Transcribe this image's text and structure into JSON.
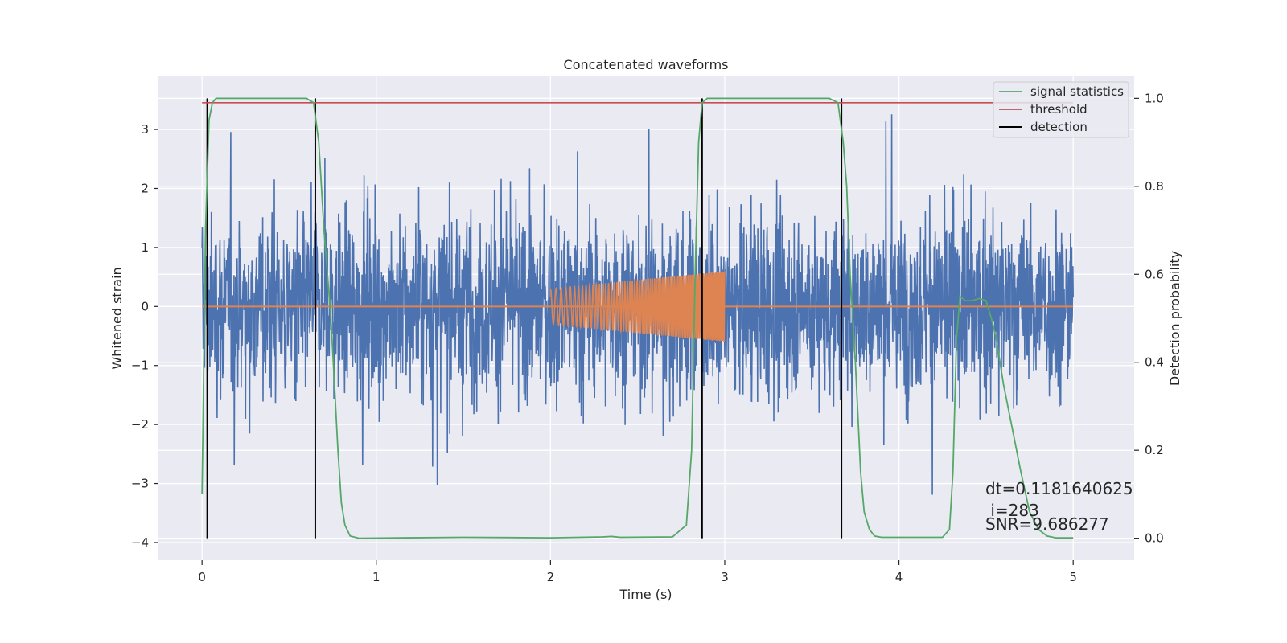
{
  "chart_data": {
    "type": "line",
    "title": "Concatenated waveforms",
    "xlabel": "Time (s)",
    "ylabel": "Whitened strain",
    "ylabel_right": "Detection probability",
    "xlim": [
      -0.25,
      5.35
    ],
    "ylim": [
      -4.3,
      3.9
    ],
    "ylim_right": [
      -0.05,
      1.05
    ],
    "xticks": [
      0,
      1,
      2,
      3,
      4,
      5
    ],
    "xtick_labels": [
      "0",
      "1",
      "2",
      "3",
      "4",
      "5"
    ],
    "yticks": [
      -4,
      -3,
      -2,
      -1,
      0,
      1,
      2,
      3
    ],
    "ytick_labels": [
      "−4",
      "−3",
      "−2",
      "−1",
      "0",
      "1",
      "2",
      "3"
    ],
    "yticks_right": [
      0.0,
      0.2,
      0.4,
      0.6,
      0.8,
      1.0
    ],
    "ytick_labels_right": [
      "0.0",
      "0.2",
      "0.4",
      "0.6",
      "0.8",
      "1.0"
    ],
    "grid": true,
    "legend_position": "top-right",
    "legend": [
      "signal statistics",
      "threshold",
      "detection"
    ],
    "colors": {
      "noise": "#4c72b0",
      "waveform": "#dd8452",
      "signal_statistics": "#55a868",
      "threshold": "#c44e52",
      "detection": "#000000",
      "plot_bg": "#eaeaf2",
      "grid": "#ffffff"
    },
    "noise": {
      "t_start": 0.0,
      "t_end": 5.0,
      "amplitude_typical": 1.5,
      "amplitude_peak": 3.5
    },
    "waveform": {
      "t_start": 2.0,
      "t_end": 3.0,
      "amp_start": 0.3,
      "amp_end": 0.6
    },
    "series": [
      {
        "name": "signal statistics",
        "x": [
          0.0,
          0.02,
          0.04,
          0.06,
          0.08,
          0.1,
          0.6,
          0.64,
          0.67,
          0.7,
          0.72,
          0.74,
          0.76,
          0.78,
          0.8,
          0.82,
          0.85,
          0.9,
          1.5,
          2.0,
          2.3,
          2.35,
          2.4,
          2.7,
          2.78,
          2.81,
          2.83,
          2.85,
          2.87,
          2.9,
          2.95,
          3.6,
          3.65,
          3.68,
          3.7,
          3.72,
          3.75,
          3.78,
          3.8,
          3.83,
          3.86,
          3.9,
          4.25,
          4.29,
          4.31,
          4.33,
          4.35,
          4.38,
          4.42,
          4.46,
          4.5,
          4.53,
          4.56,
          4.6,
          4.65,
          4.7,
          4.75,
          4.8,
          4.85,
          4.9,
          5.0
        ],
        "y": [
          0.1,
          0.7,
          0.95,
          0.99,
          1.0,
          1.0,
          1.0,
          0.99,
          0.9,
          0.7,
          0.6,
          0.5,
          0.35,
          0.2,
          0.08,
          0.03,
          0.005,
          0.0,
          0.002,
          0.001,
          0.003,
          0.004,
          0.002,
          0.003,
          0.03,
          0.2,
          0.6,
          0.9,
          0.99,
          1.0,
          1.0,
          1.0,
          0.99,
          0.9,
          0.8,
          0.6,
          0.4,
          0.15,
          0.06,
          0.02,
          0.005,
          0.002,
          0.002,
          0.02,
          0.15,
          0.45,
          0.55,
          0.54,
          0.54,
          0.545,
          0.54,
          0.5,
          0.45,
          0.35,
          0.25,
          0.15,
          0.06,
          0.02,
          0.005,
          0.001,
          0.001
        ]
      },
      {
        "name": "threshold",
        "x": [
          0.0,
          5.0
        ],
        "y": [
          0.99,
          0.99
        ]
      },
      {
        "name": "detection",
        "x": [
          0.03,
          0.65,
          2.87,
          3.67
        ],
        "y_range": [
          0.0,
          1.0
        ]
      }
    ],
    "annotations": [
      "dt=0.1181640625",
      " i=283",
      "SNR=9.686277"
    ]
  }
}
